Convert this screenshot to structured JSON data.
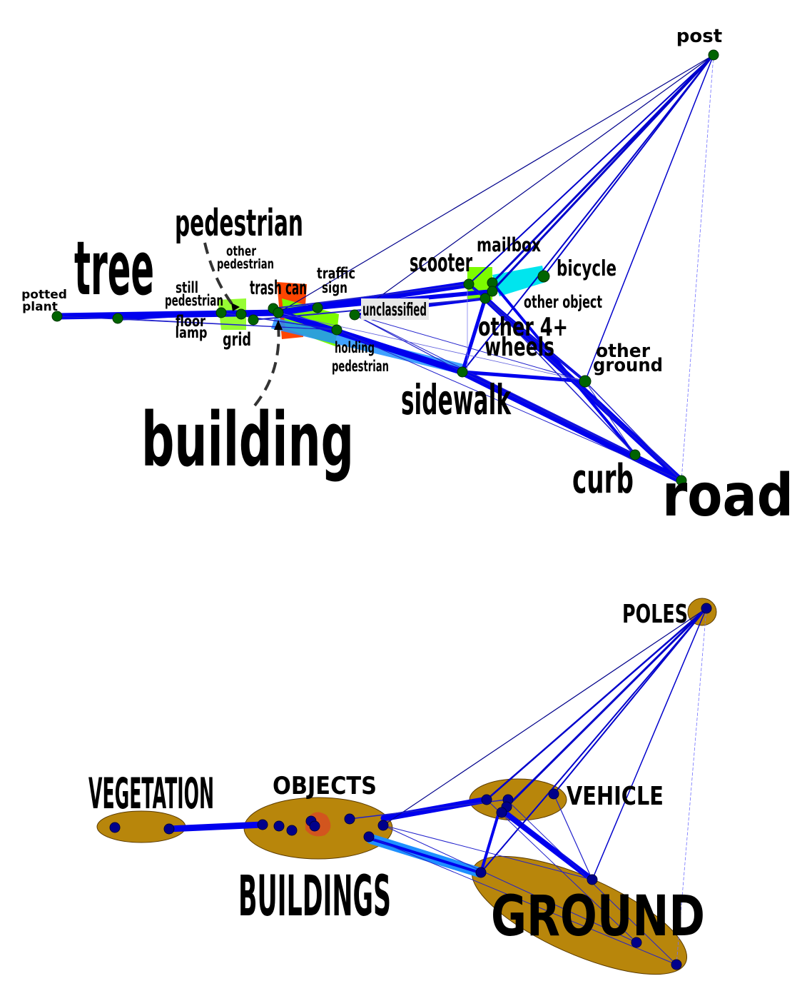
{
  "colors": {
    "edge": "#0000cc",
    "edge_light": "#7070ff",
    "edge_cyan": "#1e90ff",
    "node_top": "#006400",
    "node_bottom": "#00008b",
    "cluster_fill": "#b8860b",
    "cluster_inner": "#d2551e",
    "accent_green": "#7cfc00",
    "accent_cyan": "#00e5ee",
    "accent_orange": "#ff4500",
    "arrow": "#333333"
  },
  "top_graph": {
    "labels": {
      "post": "post",
      "potted_plant_1": "potted",
      "potted_plant_2": "plant",
      "tree": "tree",
      "pedestrian": "pedestrian",
      "other_pedestrian_1": "other",
      "other_pedestrian_2": "pedestrian",
      "still_pedestrian_1": "still",
      "still_pedestrian_2": "pedestrian",
      "floor_lamp_1": "floor",
      "floor_lamp_2": "lamp",
      "grid": "grid",
      "trash_can": "trash can",
      "traffic_sign_1": "traffic",
      "traffic_sign_2": "sign",
      "unclassified": "unclassified",
      "holding_pedestrian_1": "holding",
      "holding_pedestrian_2": "pedestrian",
      "scooter": "scooter",
      "mailbox": "mailbox",
      "bicycle": "bicycle",
      "other_object": "other object",
      "other_4_wheels_1": "other 4+",
      "other_4_wheels_2": "wheels",
      "other_ground_1": "other",
      "other_ground_2": "ground",
      "sidewalk": "sidewalk",
      "building": "building",
      "curb": "curb",
      "road": "road"
    }
  },
  "bottom_graph": {
    "clusters": {
      "poles": "POLES",
      "vegetation": "VEGETATION",
      "objects": "OBJECTS",
      "vehicle": "VEHICLE",
      "buildings": "BUILDINGS",
      "ground": "GROUND"
    }
  }
}
